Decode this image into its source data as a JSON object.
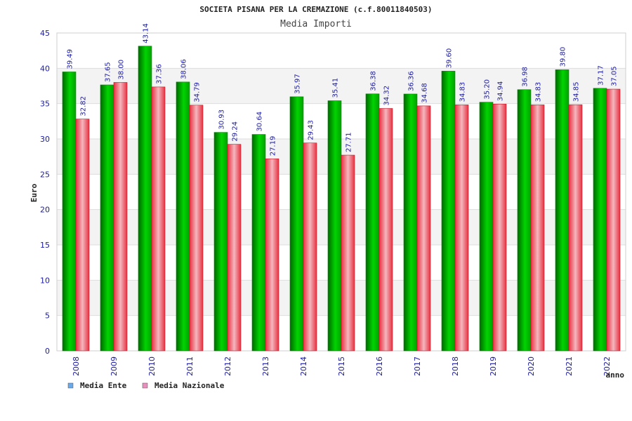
{
  "chart_data": {
    "type": "bar",
    "title": "SOCIETA PISANA PER LA CREMAZIONE (c.f.80011840503)",
    "subtitle": "Media Importi",
    "xlabel": "anno",
    "ylabel": "Euro",
    "ylim": [
      0,
      45
    ],
    "yticks": [
      "0",
      "5",
      "10",
      "15",
      "20",
      "25",
      "30",
      "35",
      "40",
      "45"
    ],
    "grid": true,
    "legend_position": "bottom-left",
    "categories": [
      "2008",
      "2009",
      "2010",
      "2011",
      "2012",
      "2013",
      "2014",
      "2015",
      "2016",
      "2017",
      "2018",
      "2019",
      "2020",
      "2021",
      "2022"
    ],
    "series": [
      {
        "name": "Media Ente",
        "color": "#00b300",
        "legend_color": "#6aa9ea",
        "values": [
          39.49,
          37.65,
          43.14,
          38.06,
          30.93,
          30.64,
          35.97,
          35.41,
          36.38,
          36.36,
          39.6,
          35.2,
          36.98,
          39.8,
          37.17
        ],
        "labels": [
          "39.49",
          "37.65",
          "43.14",
          "38.06",
          "30.93",
          "30.64",
          "35.97",
          "35.41",
          "36.38",
          "36.36",
          "39.60",
          "35.20",
          "36.98",
          "39.80",
          "37.17"
        ]
      },
      {
        "name": "Media Nazionale",
        "color": "#e8303f",
        "legend_color": "#e88fbd",
        "values": [
          32.82,
          38.0,
          37.36,
          34.79,
          29.24,
          27.19,
          29.43,
          27.71,
          34.32,
          34.68,
          34.83,
          34.94,
          34.83,
          34.85,
          37.05
        ],
        "labels": [
          "32.82",
          "38.00",
          "37.36",
          "34.79",
          "29.24",
          "27.19",
          "29.43",
          "27.71",
          "34.32",
          "34.68",
          "34.83",
          "34.94",
          "34.83",
          "34.85",
          "37.05"
        ]
      }
    ]
  }
}
